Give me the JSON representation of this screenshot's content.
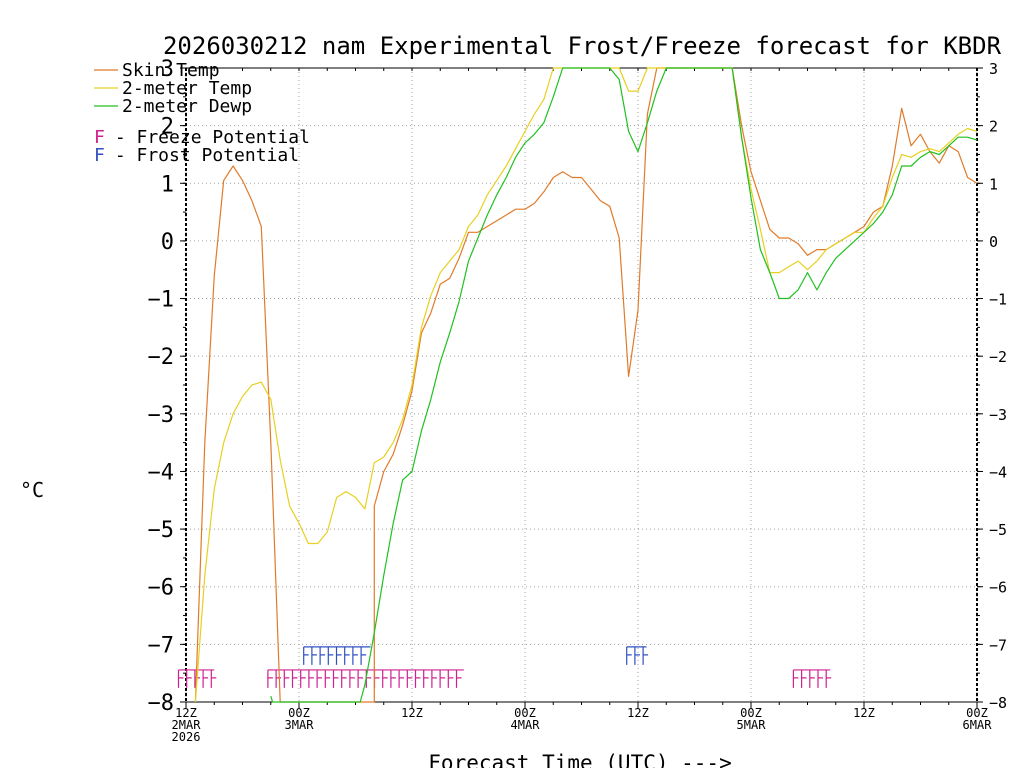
{
  "chart_data": {
    "type": "line",
    "title": "2026030212 nam Experimental Frost/Freeze forecast for KBDR",
    "xlabel": "Forecast Time (UTC) --->",
    "ylabel": "°C",
    "ylim": [
      -8,
      3
    ],
    "xlim_hours": [
      0,
      84
    ],
    "y_ticks": [
      -8,
      -7,
      -6,
      -5,
      -4,
      -3,
      -2,
      -1,
      0,
      1,
      2,
      3
    ],
    "y_tick_labels": [
      "−8",
      "−7",
      "−6",
      "−5",
      "−4",
      "−3",
      "−2",
      "−1",
      "0",
      "1",
      "2",
      "3"
    ],
    "x_ticks": [
      {
        "hour": 0,
        "line1": "12Z",
        "line2": "2MAR",
        "line3": "2026"
      },
      {
        "hour": 12,
        "line1": "00Z",
        "line2": "3MAR",
        "line3": ""
      },
      {
        "hour": 24,
        "line1": "12Z",
        "line2": "",
        "line3": ""
      },
      {
        "hour": 36,
        "line1": "00Z",
        "line2": "4MAR",
        "line3": ""
      },
      {
        "hour": 48,
        "line1": "12Z",
        "line2": "",
        "line3": ""
      },
      {
        "hour": 60,
        "line1": "00Z",
        "line2": "5MAR",
        "line3": ""
      },
      {
        "hour": 72,
        "line1": "12Z",
        "line2": "",
        "line3": ""
      },
      {
        "hour": 84,
        "line1": "00Z",
        "line2": "6MAR",
        "line3": ""
      }
    ],
    "grid": true,
    "legend": {
      "position": "top-left",
      "entries": [
        {
          "label": "Skin Temp",
          "color": "#e07b2a"
        },
        {
          "label": "2-meter Temp",
          "color": "#e8d020"
        },
        {
          "label": "2-meter Dewp",
          "color": "#20c020"
        }
      ],
      "markers": [
        {
          "symbol": "F",
          "text": " - Freeze Potential",
          "color": "#d02090"
        },
        {
          "symbol": "F",
          "text": " - Frost Potential",
          "color": "#3050c0"
        }
      ]
    },
    "series": [
      {
        "name": "Skin Temp",
        "color": "#e07b2a",
        "points": [
          [
            1,
            -8
          ],
          [
            2,
            -3.5
          ],
          [
            3,
            -0.6
          ],
          [
            4,
            1.05
          ],
          [
            5,
            1.3
          ],
          [
            6,
            1.05
          ],
          [
            7,
            0.7
          ],
          [
            8,
            0.25
          ],
          [
            9,
            -3.5
          ],
          [
            10,
            -8
          ],
          [
            20,
            -8
          ],
          [
            20,
            -4.6
          ],
          [
            21,
            -4.0
          ],
          [
            22,
            -3.7
          ],
          [
            23,
            -3.2
          ],
          [
            24,
            -2.6
          ],
          [
            25,
            -1.6
          ],
          [
            26,
            -1.25
          ],
          [
            27,
            -0.75
          ],
          [
            28,
            -0.65
          ],
          [
            29,
            -0.3
          ],
          [
            30,
            0.15
          ],
          [
            31,
            0.15
          ],
          [
            32,
            0.25
          ],
          [
            33,
            0.35
          ],
          [
            34,
            0.45
          ],
          [
            35,
            0.55
          ],
          [
            36,
            0.55
          ],
          [
            37,
            0.65
          ],
          [
            38,
            0.85
          ],
          [
            39,
            1.1
          ],
          [
            40,
            1.2
          ],
          [
            41,
            1.1
          ],
          [
            42,
            1.1
          ],
          [
            43,
            0.9
          ],
          [
            44,
            0.7
          ],
          [
            45,
            0.6
          ],
          [
            46,
            0.05
          ],
          [
            47,
            -2.35
          ],
          [
            48,
            -1.2
          ],
          [
            49,
            2.2
          ],
          [
            50,
            3.0
          ],
          [
            58,
            3.0
          ],
          [
            59,
            2.0
          ],
          [
            60,
            1.2
          ],
          [
            61,
            0.7
          ],
          [
            62,
            0.2
          ],
          [
            63,
            0.05
          ],
          [
            64,
            0.05
          ],
          [
            65,
            -0.05
          ],
          [
            66,
            -0.25
          ],
          [
            67,
            -0.15
          ],
          [
            68,
            -0.15
          ],
          [
            69,
            -0.05
          ],
          [
            70,
            0.05
          ],
          [
            71,
            0.15
          ],
          [
            72,
            0.25
          ],
          [
            73,
            0.5
          ],
          [
            74,
            0.6
          ],
          [
            75,
            1.3
          ],
          [
            76,
            2.3
          ],
          [
            77,
            1.65
          ],
          [
            78,
            1.85
          ],
          [
            79,
            1.55
          ],
          [
            80,
            1.35
          ],
          [
            81,
            1.65
          ],
          [
            82,
            1.55
          ],
          [
            83,
            1.1
          ],
          [
            84,
            1.0
          ]
        ]
      },
      {
        "name": "2-meter Temp",
        "color": "#e8d020",
        "points": [
          [
            1,
            -8
          ],
          [
            2,
            -5.8
          ],
          [
            3,
            -4.3
          ],
          [
            4,
            -3.5
          ],
          [
            5,
            -3.0
          ],
          [
            6,
            -2.7
          ],
          [
            7,
            -2.5
          ],
          [
            8,
            -2.45
          ],
          [
            9,
            -2.75
          ],
          [
            10,
            -3.8
          ],
          [
            11,
            -4.6
          ],
          [
            12,
            -4.9
          ],
          [
            13,
            -5.25
          ],
          [
            14,
            -5.25
          ],
          [
            15,
            -5.05
          ],
          [
            16,
            -4.45
          ],
          [
            17,
            -4.35
          ],
          [
            18,
            -4.45
          ],
          [
            19,
            -4.65
          ],
          [
            20,
            -3.85
          ],
          [
            21,
            -3.75
          ],
          [
            22,
            -3.5
          ],
          [
            23,
            -3.1
          ],
          [
            24,
            -2.5
          ],
          [
            25,
            -1.5
          ],
          [
            26,
            -0.95
          ],
          [
            27,
            -0.55
          ],
          [
            28,
            -0.35
          ],
          [
            29,
            -0.15
          ],
          [
            30,
            0.25
          ],
          [
            31,
            0.45
          ],
          [
            32,
            0.8
          ],
          [
            33,
            1.05
          ],
          [
            34,
            1.3
          ],
          [
            35,
            1.6
          ],
          [
            36,
            1.9
          ],
          [
            37,
            2.2
          ],
          [
            38,
            2.45
          ],
          [
            39,
            3.0
          ],
          [
            45,
            3.0
          ],
          [
            46,
            3.0
          ],
          [
            47,
            2.6
          ],
          [
            48,
            2.6
          ],
          [
            49,
            3.0
          ],
          [
            50,
            3.0
          ],
          [
            58,
            3.0
          ],
          [
            59,
            1.8
          ],
          [
            60,
            0.9
          ],
          [
            61,
            0.2
          ],
          [
            62,
            -0.55
          ],
          [
            63,
            -0.55
          ],
          [
            64,
            -0.45
          ],
          [
            65,
            -0.35
          ],
          [
            66,
            -0.5
          ],
          [
            67,
            -0.35
          ],
          [
            68,
            -0.15
          ],
          [
            69,
            -0.05
          ],
          [
            70,
            0.05
          ],
          [
            71,
            0.15
          ],
          [
            72,
            0.15
          ],
          [
            73,
            0.4
          ],
          [
            74,
            0.6
          ],
          [
            75,
            1.1
          ],
          [
            76,
            1.5
          ],
          [
            77,
            1.45
          ],
          [
            78,
            1.55
          ],
          [
            79,
            1.6
          ],
          [
            80,
            1.55
          ],
          [
            81,
            1.7
          ],
          [
            82,
            1.85
          ],
          [
            83,
            1.95
          ],
          [
            84,
            1.9
          ]
        ]
      },
      {
        "name": "2-meter Dewp",
        "color": "#20c020",
        "points": [
          [
            9,
            -7.9
          ],
          [
            9.2,
            -8
          ],
          [
            18.5,
            -8
          ],
          [
            19,
            -7.7
          ],
          [
            20,
            -6.8
          ],
          [
            21,
            -5.8
          ],
          [
            22,
            -4.9
          ],
          [
            23,
            -4.15
          ],
          [
            24,
            -4.0
          ],
          [
            25,
            -3.3
          ],
          [
            26,
            -2.75
          ],
          [
            27,
            -2.1
          ],
          [
            28,
            -1.6
          ],
          [
            29,
            -1.05
          ],
          [
            30,
            -0.35
          ],
          [
            31,
            0.05
          ],
          [
            32,
            0.45
          ],
          [
            33,
            0.8
          ],
          [
            34,
            1.1
          ],
          [
            35,
            1.45
          ],
          [
            36,
            1.7
          ],
          [
            37,
            1.85
          ],
          [
            38,
            2.05
          ],
          [
            39,
            2.5
          ],
          [
            40,
            3.0
          ],
          [
            45,
            3.0
          ],
          [
            46,
            2.8
          ],
          [
            47,
            1.9
          ],
          [
            48,
            1.55
          ],
          [
            49,
            2.05
          ],
          [
            50,
            2.6
          ],
          [
            51,
            3.0
          ],
          [
            58,
            3.0
          ],
          [
            59,
            1.8
          ],
          [
            60,
            0.75
          ],
          [
            61,
            -0.15
          ],
          [
            62,
            -0.55
          ],
          [
            63,
            -1.0
          ],
          [
            64,
            -1.0
          ],
          [
            65,
            -0.85
          ],
          [
            66,
            -0.55
          ],
          [
            67,
            -0.85
          ],
          [
            68,
            -0.55
          ],
          [
            69,
            -0.3
          ],
          [
            70,
            -0.15
          ],
          [
            71,
            0.0
          ],
          [
            72,
            0.15
          ],
          [
            73,
            0.3
          ],
          [
            74,
            0.5
          ],
          [
            75,
            0.8
          ],
          [
            76,
            1.3
          ],
          [
            77,
            1.3
          ],
          [
            78,
            1.45
          ],
          [
            79,
            1.55
          ],
          [
            80,
            1.5
          ],
          [
            81,
            1.65
          ],
          [
            82,
            1.8
          ],
          [
            83,
            1.8
          ],
          [
            84,
            1.75
          ]
        ]
      }
    ],
    "freeze_potential": {
      "color": "#d02090",
      "y": -7.6,
      "segments": [
        [
          -0.8,
          3.0
        ],
        [
          8.7,
          29.5
        ],
        [
          64.5,
          68.4
        ]
      ]
    },
    "frost_potential": {
      "color": "#3050c0",
      "y": -7.2,
      "segments": [
        [
          12.5,
          19.6
        ],
        [
          46.8,
          48.9
        ]
      ]
    }
  }
}
